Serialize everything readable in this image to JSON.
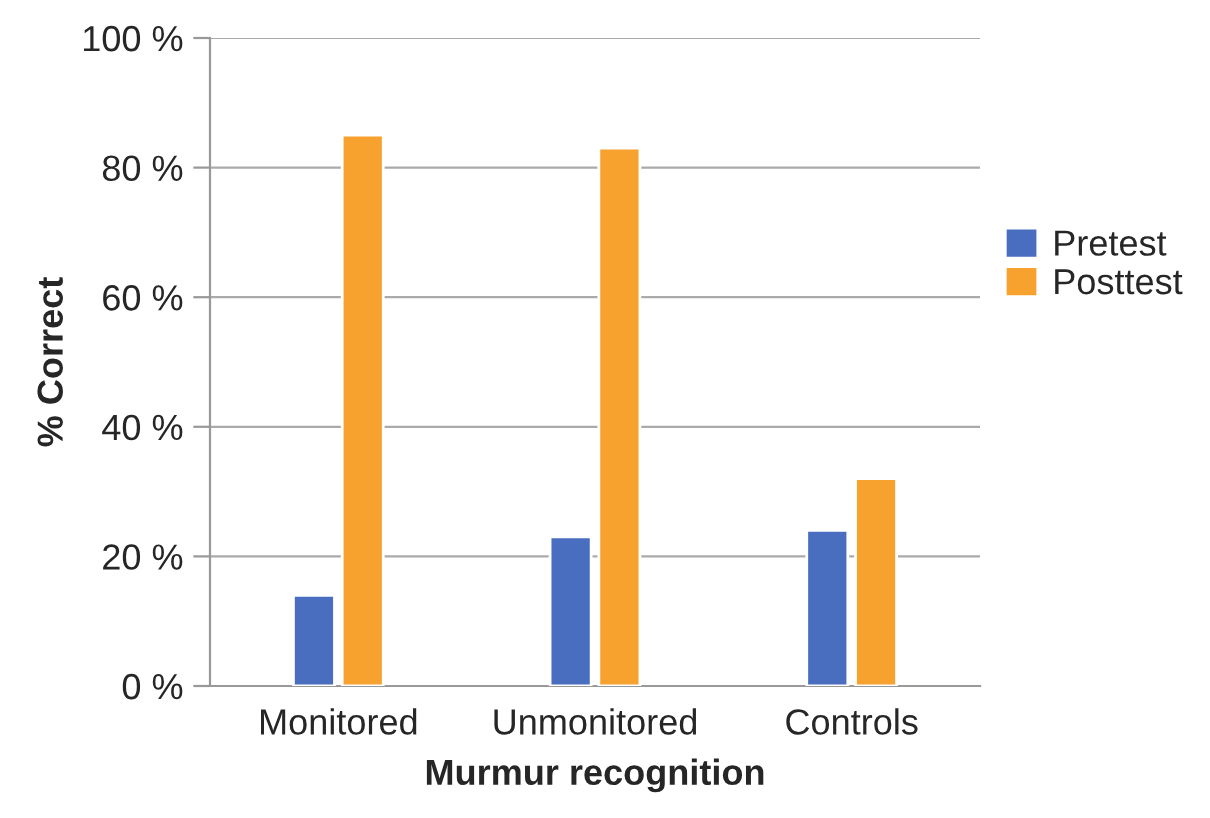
{
  "chart_data": {
    "type": "bar",
    "xlabel": "Murmur recognition",
    "ylabel": "% Correct",
    "categories": [
      "Monitored",
      "Unmonitored",
      "Controls"
    ],
    "series": [
      {
        "name": "Pretest",
        "color": "#4a6ebf",
        "values": [
          14,
          23,
          24
        ]
      },
      {
        "name": "Posttest",
        "color": "#f7a12f",
        "values": [
          85,
          83,
          32
        ]
      }
    ],
    "ylim": [
      0,
      100
    ],
    "yticks": [
      {
        "value": 0,
        "label": "0 %"
      },
      {
        "value": 20,
        "label": "20 %"
      },
      {
        "value": 40,
        "label": "40 %"
      },
      {
        "value": 60,
        "label": "60 %"
      },
      {
        "value": 80,
        "label": "80 %"
      },
      {
        "value": 100,
        "label": "100 %"
      }
    ],
    "grid": "y",
    "legend": "right"
  }
}
